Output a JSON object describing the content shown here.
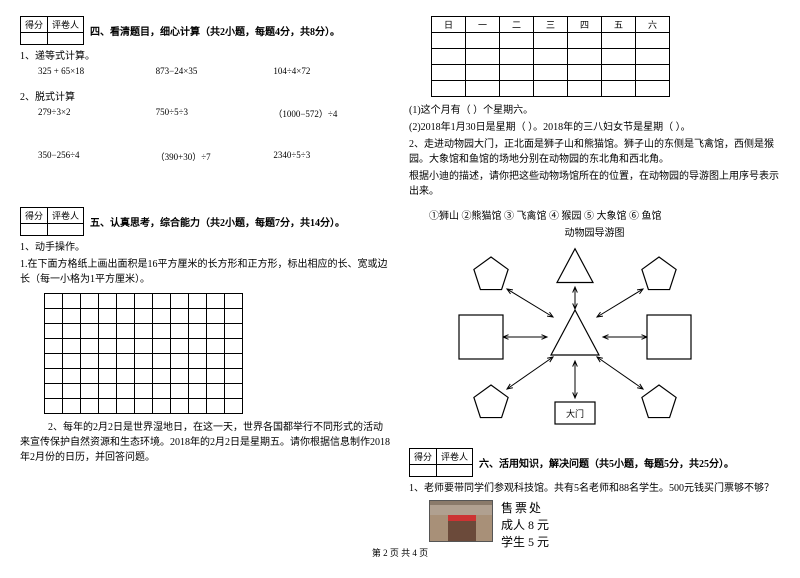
{
  "score_labels": {
    "score": "得分",
    "grader": "评卷人"
  },
  "left": {
    "sec4_title": "四、看清题目，细心计算（共2小题，每题4分，共8分）。",
    "q1": "1、递等式计算。",
    "q1_items": [
      "325 + 65×18",
      "873−24×35",
      "104÷4×72"
    ],
    "q2": "2、脱式计算",
    "q2_row1": [
      "279÷3×2",
      "750÷5÷3",
      "（1000−572）÷4"
    ],
    "q2_row2": [
      "350−256÷4",
      "（390+30）÷7",
      "2340÷5÷3"
    ],
    "sec5_title": "五、认真思考，综合能力（共2小题，每题7分，共14分）。",
    "q5_1": "1、动手操作。",
    "q5_1_desc": "1.在下面方格纸上画出面积是16平方厘米的长方形和正方形，标出相应的长、宽或边长（每一小格为1平方厘米）。",
    "grid": {
      "rows": 8,
      "cols": 11
    },
    "q5_2": "2、每年的2月2日是世界湿地日，在这一天，世界各国都举行不同形式的活动来宣传保护自然资源和生态环境。2018年的2月2日是星期五。请你根据信息制作2018年2月份的日历，并回答问题。"
  },
  "right": {
    "calendar_header": [
      "日",
      "一",
      "二",
      "三",
      "四",
      "五",
      "六"
    ],
    "calendar_rows": 4,
    "cal_q1": "(1)这个月有（    ）个星期六。",
    "cal_q2": "(2)2018年1月30日是星期（    ）。2018年的三八妇女节是星期（    ）。",
    "q2_text": "2、走进动物园大门，正北面是狮子山和熊猫馆。狮子山的东侧是飞禽馆，西侧是猴园。大象馆和鱼馆的场地分别在动物园的东北角和西北角。",
    "q2_text2": "根据小迪的描述，请你把这些动物场馆所在的位置，在动物园的导游图上用序号表示出来。",
    "legend": "①狮山  ②熊猫馆  ③ 飞禽馆  ④ 猴园  ⑤ 大象馆  ⑥ 鱼馆",
    "diagram_title": "动物园导游图",
    "gate_label": "大门",
    "diagram": {
      "stroke": "#000000",
      "fill": "#ffffff",
      "triangle_size": 48,
      "pentagon_size": 36,
      "square_size": 44,
      "arrow_stroke": "#000000"
    },
    "sec6_title": "六、活用知识，解决问题（共5小题，每题5分，共25分）。",
    "q6_1": "1、老师要带同学们参观科技馆。共有5名老师和88名学生。500元钱买门票够不够？",
    "ticket": {
      "title": "售票处",
      "line1": "成人 8 元",
      "line2": "学生 5 元"
    }
  },
  "footer": "第 2 页 共 4 页"
}
